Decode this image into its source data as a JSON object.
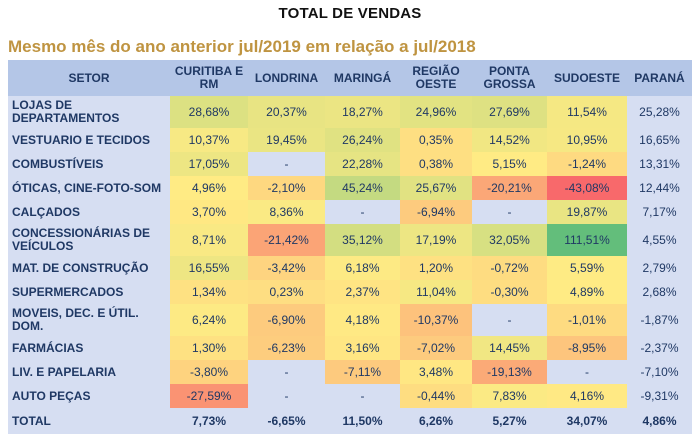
{
  "title": "TOTAL DE VENDAS",
  "subtitle": "Mesmo mês do ano anterior jul/2019 em relação a jul/2018",
  "colors": {
    "subtitle": "#BF9441",
    "header_bg": "#B4C6E7",
    "header_text": "#1F3864",
    "row_label_bg": "#D6DEF2",
    "cell_text": "#1F3864",
    "na_bg": "#D6DEF2"
  },
  "chart_data": {
    "type": "heatmap",
    "title": "TOTAL DE VENDAS",
    "subtitle": "Mesmo mês do ano anterior jul/2019 em relação a jul/2018",
    "columns": [
      "SETOR",
      "CURITIBA E RM",
      "LONDRINA",
      "MARINGÁ",
      "REGIÃO OESTE",
      "PONTA GROSSA",
      "SUDOESTE",
      "PARANÁ"
    ],
    "rows": [
      {
        "setor": "LOJAS DE DEPARTAMENTOS",
        "values": [
          "28,68%",
          "20,37%",
          "18,27%",
          "24,96%",
          "27,69%",
          "11,54%",
          "25,28%"
        ]
      },
      {
        "setor": "VESTUARIO E TECIDOS",
        "values": [
          "10,37%",
          "19,45%",
          "26,24%",
          "0,35%",
          "14,52%",
          "10,95%",
          "16,65%"
        ]
      },
      {
        "setor": "COMBUSTÍVEIS",
        "values": [
          "17,05%",
          "-",
          "22,28%",
          "0,38%",
          "5,15%",
          "-1,24%",
          "13,31%"
        ]
      },
      {
        "setor": "ÓTICAS, CINE-FOTO-SOM",
        "values": [
          "4,96%",
          "-2,10%",
          "45,24%",
          "25,67%",
          "-20,21%",
          "-43,08%",
          "12,44%"
        ]
      },
      {
        "setor": "CALÇADOS",
        "values": [
          "3,70%",
          "8,36%",
          "-",
          "-6,94%",
          "-",
          "19,87%",
          "7,17%"
        ]
      },
      {
        "setor": "CONCESSIONÁRIAS DE VEÍCULOS",
        "values": [
          "8,71%",
          "-21,42%",
          "35,12%",
          "17,19%",
          "32,05%",
          "111,51%",
          "4,55%"
        ]
      },
      {
        "setor": "MAT. DE CONSTRUÇÃO",
        "values": [
          "16,55%",
          "-3,42%",
          "6,18%",
          "1,20%",
          "-0,72%",
          "5,59%",
          "2,79%"
        ]
      },
      {
        "setor": "SUPERMERCADOS",
        "values": [
          "1,34%",
          "0,23%",
          "2,37%",
          "11,04%",
          "-0,30%",
          "4,89%",
          "2,68%"
        ]
      },
      {
        "setor": "MOVEIS, DEC. E ÚTIL. DOM.",
        "values": [
          "6,24%",
          "-6,90%",
          "4,18%",
          "-10,37%",
          "-",
          "-1,01%",
          "-1,87%"
        ]
      },
      {
        "setor": "FARMÁCIAS",
        "values": [
          "1,30%",
          "-6,23%",
          "3,16%",
          "-7,02%",
          "14,45%",
          "-8,95%",
          "-2,37%"
        ]
      },
      {
        "setor": "LIV. E PAPELARIA",
        "values": [
          "-3,80%",
          "-",
          "-7,11%",
          "3,48%",
          "-19,13%",
          "-",
          "-7,10%"
        ]
      },
      {
        "setor": "AUTO PEÇAS",
        "values": [
          "-27,59%",
          "-",
          "-",
          "-0,44%",
          "7,83%",
          "4,16%",
          "-9,31%"
        ]
      },
      {
        "setor": "TOTAL",
        "total": true,
        "values": [
          "7,73%",
          "-6,65%",
          "11,50%",
          "6,26%",
          "5,27%",
          "34,07%",
          "4,86%"
        ]
      }
    ],
    "color_scale": {
      "min": -43.08,
      "mid": 4.89,
      "max": 111.51,
      "min_color": "#F8696B",
      "mid_color": "#FFEB84",
      "max_color": "#63BE7B",
      "na_color": "#D6DEF2"
    },
    "legend": "cells colored red (lowest) to yellow (mid) to green (highest); dashes and PARANÁ column uncolored"
  }
}
